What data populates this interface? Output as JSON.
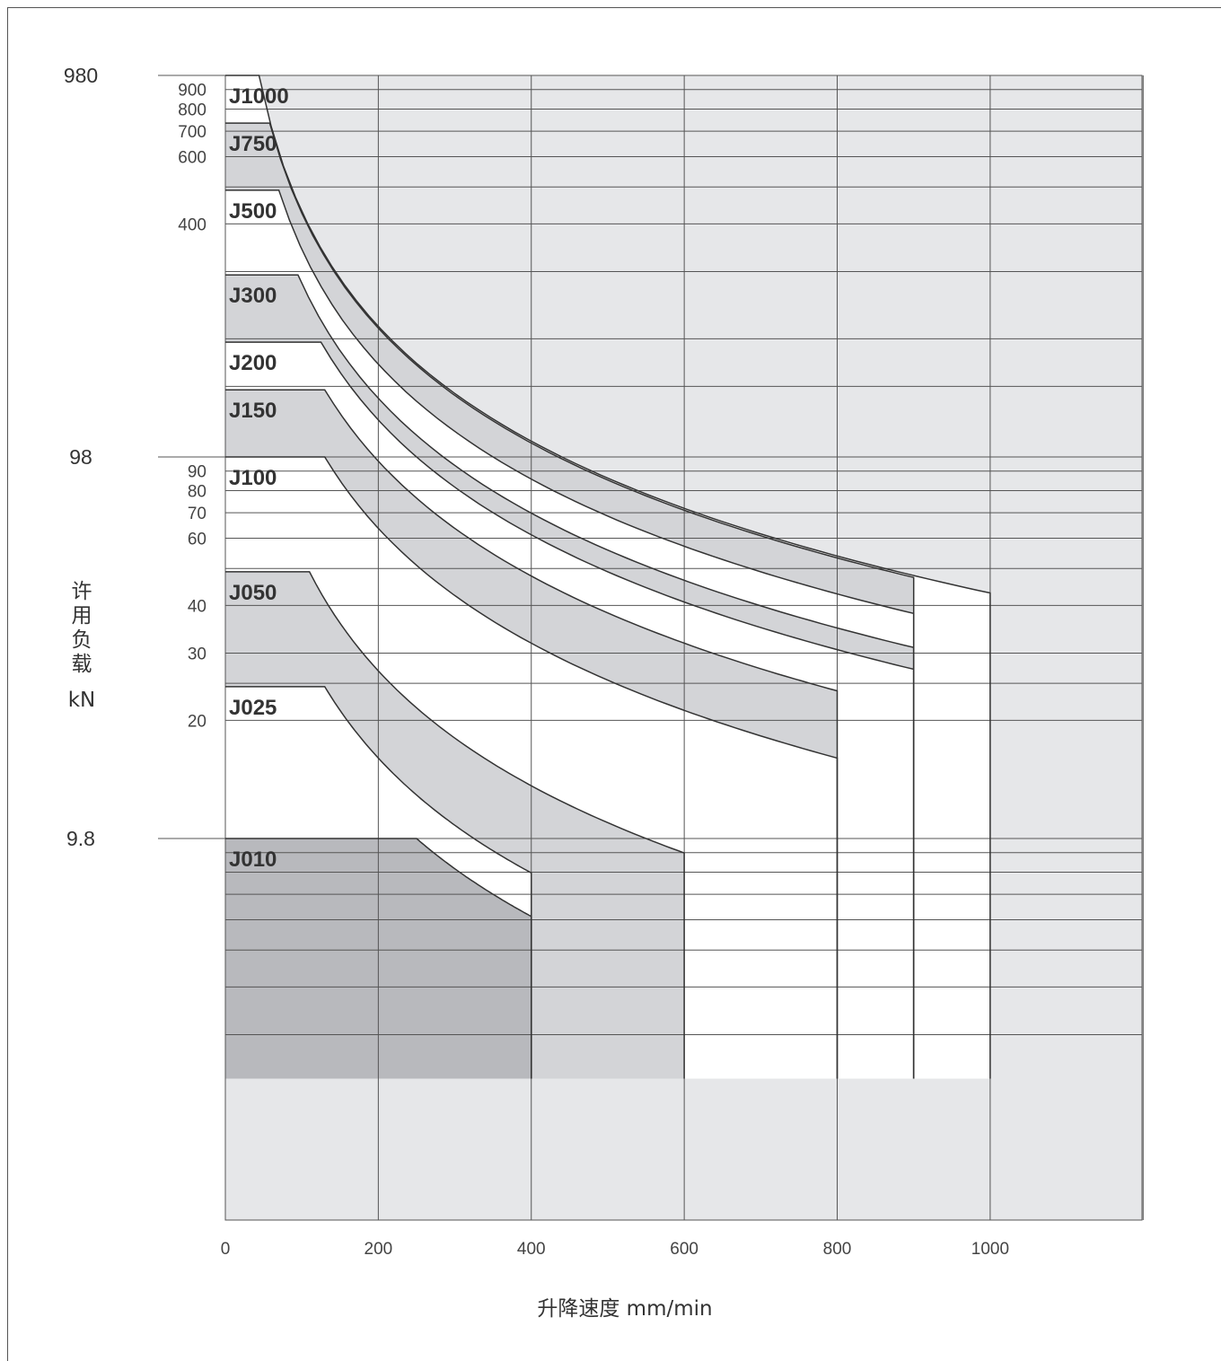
{
  "chart_data": {
    "type": "area",
    "xlabel": "升降速度  mm/min",
    "ylabel_lines": [
      "许",
      "用",
      "负",
      "载",
      "kN"
    ],
    "x_ticks": [
      0,
      200,
      400,
      600,
      800,
      1000
    ],
    "xlim": [
      0,
      1200
    ],
    "y_scale": "log",
    "ylim": [
      2.3,
      980
    ],
    "y_major_ticks": [
      {
        "value": 980,
        "label": "980"
      },
      {
        "value": 98,
        "label": "98"
      },
      {
        "value": 9.8,
        "label": "9.8"
      }
    ],
    "y_minor_ticks": [
      {
        "value": 900,
        "label": "900"
      },
      {
        "value": 800,
        "label": "800"
      },
      {
        "value": 700,
        "label": "700"
      },
      {
        "value": 600,
        "label": "600"
      },
      {
        "value": 400,
        "label": "400"
      },
      {
        "value": 90,
        "label": "90"
      },
      {
        "value": 80,
        "label": "80"
      },
      {
        "value": 70,
        "label": "70"
      },
      {
        "value": 60,
        "label": "60"
      },
      {
        "value": 40,
        "label": "40"
      },
      {
        "value": 30,
        "label": "30"
      },
      {
        "value": 20,
        "label": "20"
      }
    ],
    "y_grid_values": [
      980,
      900,
      800,
      700,
      600,
      500,
      400,
      300,
      200,
      150,
      98,
      90,
      80,
      70,
      60,
      50,
      40,
      30,
      25,
      20,
      9.8,
      9,
      8,
      7,
      6,
      5,
      4,
      3
    ],
    "colors": {
      "light": "#e6e7e9",
      "medium": "#d3d4d7",
      "dark": "#b8b9bd",
      "white": "#ffffff",
      "line": "#333333"
    },
    "series": [
      {
        "name": "J1000",
        "capacity_kN": 980,
        "max_speed": 1000,
        "speed_at_full_load": 44
      },
      {
        "name": "J750",
        "capacity_kN": 735,
        "max_speed": 900,
        "speed_at_full_load": 58
      },
      {
        "name": "J500",
        "capacity_kN": 490,
        "max_speed": 900,
        "speed_at_full_load": 70
      },
      {
        "name": "J300",
        "capacity_kN": 294,
        "max_speed": 900,
        "speed_at_full_load": 95
      },
      {
        "name": "J200",
        "capacity_kN": 196,
        "max_speed": 900,
        "speed_at_full_load": 125
      },
      {
        "name": "J150",
        "capacity_kN": 147,
        "max_speed": 800,
        "speed_at_full_load": 130
      },
      {
        "name": "J100",
        "capacity_kN": 98,
        "max_speed": 800,
        "speed_at_full_load": 130
      },
      {
        "name": "J050",
        "capacity_kN": 49,
        "max_speed": 600,
        "speed_at_full_load": 110
      },
      {
        "name": "J025",
        "capacity_kN": 24.5,
        "max_speed": 400,
        "speed_at_full_load": 130
      },
      {
        "name": "J010",
        "capacity_kN": 9.8,
        "max_speed": 400,
        "speed_at_full_load": 250
      }
    ]
  }
}
